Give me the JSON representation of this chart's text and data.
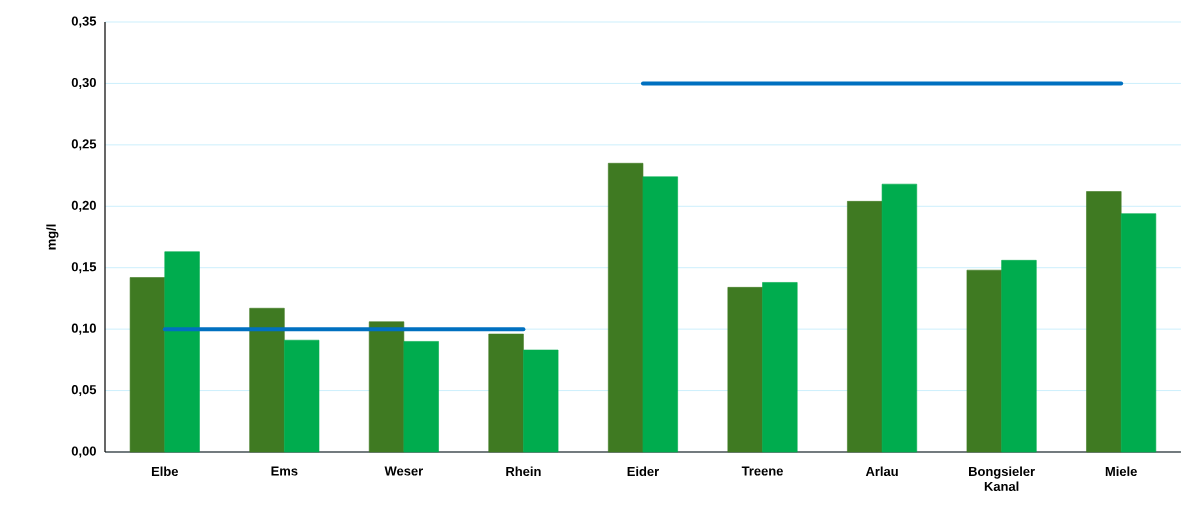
{
  "chart_data": {
    "type": "bar",
    "ylabel": "mg/l",
    "categories": [
      "Elbe",
      "Ems",
      "Weser",
      "Rhein",
      "Eider",
      "Treene",
      "Arlau",
      "Bongsieler Kanal",
      "Miele"
    ],
    "series": [
      {
        "color": "#3f7a22",
        "values": [
          0.142,
          0.117,
          0.106,
          0.096,
          0.235,
          0.134,
          0.204,
          0.148,
          0.212
        ]
      },
      {
        "color": "#00ac4e",
        "values": [
          0.163,
          0.091,
          0.09,
          0.083,
          0.224,
          0.138,
          0.218,
          0.156,
          0.194
        ]
      },
      {
        "type": "line",
        "color": "#0070c0",
        "values": [
          0.1,
          0.1,
          0.1,
          0.1,
          null,
          null,
          null,
          null,
          null
        ]
      },
      {
        "type": "line",
        "color": "#0070c0",
        "values": [
          null,
          null,
          null,
          null,
          0.3,
          0.3,
          0.3,
          0.3,
          0.3
        ]
      }
    ],
    "ylim": [
      0,
      0.35
    ],
    "yticks": [
      {
        "value": 0,
        "label": "0,00"
      },
      {
        "value": 0.05,
        "label": "0,05"
      },
      {
        "value": 0.1,
        "label": "0,10"
      },
      {
        "value": 0.15,
        "label": "0,15"
      },
      {
        "value": 0.2,
        "label": "0,20"
      },
      {
        "value": 0.25,
        "label": "0,25"
      },
      {
        "value": 0.3,
        "label": "0,30"
      },
      {
        "value": 0.35,
        "label": "0,35"
      }
    ],
    "grid": "y"
  }
}
